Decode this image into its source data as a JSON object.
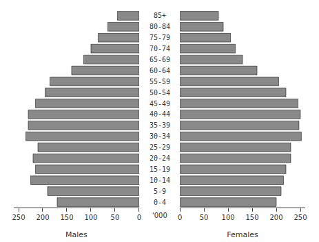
{
  "chart_data": {
    "type": "pyramid",
    "orientation": "horizontal",
    "categories": [
      "85+",
      "80-84",
      "75-79",
      "70-74",
      "65-69",
      "60-64",
      "55-59",
      "50-54",
      "45-49",
      "40-44",
      "35-39",
      "30-34",
      "25-29",
      "20-24",
      "15-19",
      "10-14",
      "5-9",
      "0-4"
    ],
    "series": [
      {
        "name": "Males",
        "values": [
          45,
          65,
          85,
          100,
          115,
          140,
          185,
          195,
          215,
          230,
          230,
          235,
          210,
          220,
          215,
          225,
          190,
          170
        ]
      },
      {
        "name": "Females",
        "values": [
          80,
          90,
          105,
          115,
          130,
          160,
          205,
          220,
          245,
          250,
          247,
          252,
          230,
          230,
          220,
          215,
          210,
          200
        ]
      }
    ],
    "color": "#898989",
    "xlim": [
      0,
      260
    ],
    "xticks": [
      0,
      50,
      100,
      150,
      200,
      250
    ],
    "annotations": [
      "'000"
    ],
    "grid": false
  }
}
